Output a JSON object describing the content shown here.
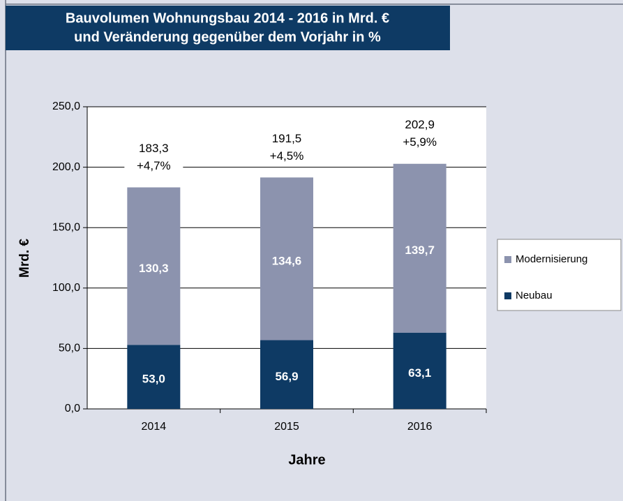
{
  "chart_data": {
    "type": "stacked_bar",
    "title": [
      "Bauvolumen Wohnungsbau 2014 - 2016 in Mrd. €",
      "und Veränderung gegenüber dem Vorjahr in %"
    ],
    "x_label": "Jahre",
    "y_label": "Mrd. €",
    "categories": [
      "2014",
      "2015",
      "2016"
    ],
    "series": [
      {
        "name": "Neubau",
        "color": "#0e3a64",
        "values": [
          53.0,
          56.9,
          63.1
        ],
        "value_labels": [
          "53,0",
          "56,9",
          "63,1"
        ]
      },
      {
        "name": "Modernisierung",
        "color": "#8c93ae",
        "values": [
          130.3,
          134.6,
          139.7
        ],
        "value_labels": [
          "130,3",
          "134,6",
          "139,7"
        ]
      }
    ],
    "totals": [
      183.3,
      191.5,
      202.9
    ],
    "total_labels": [
      "183,3",
      "191,5",
      "202,9"
    ],
    "changes": [
      4.7,
      4.5,
      5.9
    ],
    "change_labels": [
      "+4,7%",
      "+4,5%",
      "+5,9%"
    ],
    "ylim": [
      0,
      250
    ],
    "yticks": [
      {
        "value": 0,
        "label": "0,0"
      },
      {
        "value": 50,
        "label": "50,0"
      },
      {
        "value": 100,
        "label": "100,0"
      },
      {
        "value": 150,
        "label": "150,0"
      },
      {
        "value": 200,
        "label": "200,0"
      },
      {
        "value": 250,
        "label": "250,0"
      }
    ],
    "grid": true,
    "legend": "right"
  }
}
